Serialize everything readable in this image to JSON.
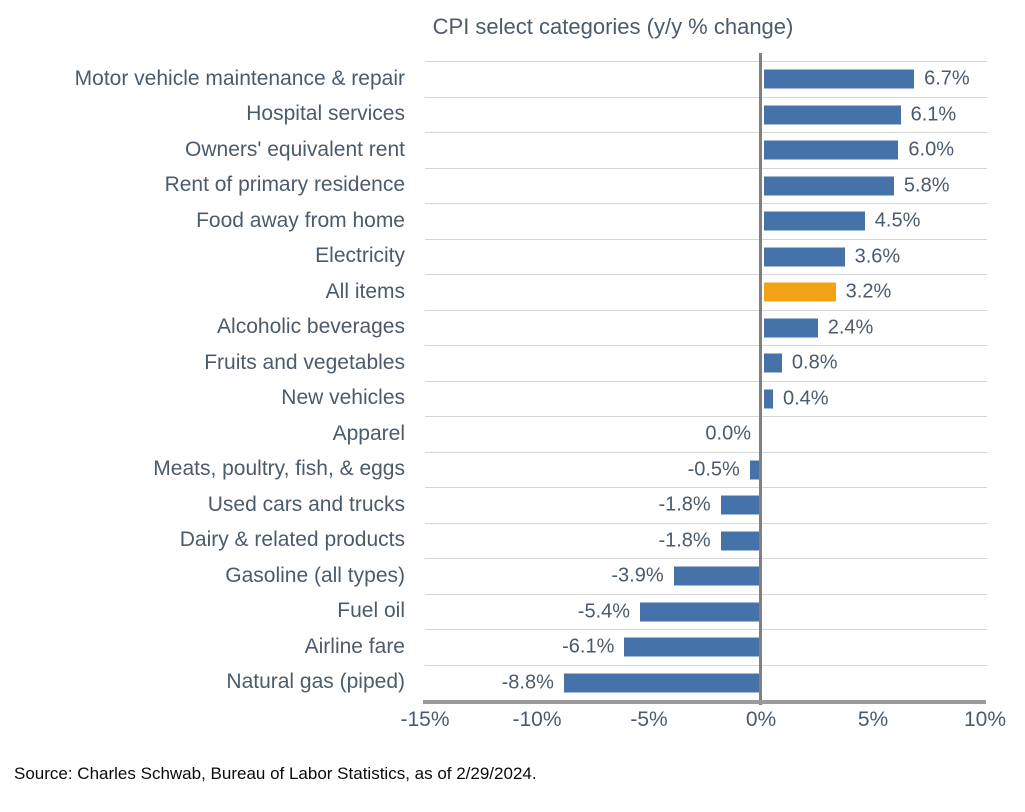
{
  "title": "CPI select categories (y/y % change)",
  "source": "Source: Charles Schwab, Bureau of Labor Statistics, as of 2/29/2024.",
  "colors": {
    "bar_blue": "#4573A9",
    "bar_orange": "#F3A218",
    "text": "#4C5B6B",
    "gridline": "#D6D6D6",
    "zero_line": "#808080",
    "axis_line": "#9B9B9B"
  },
  "chart_data": {
    "type": "bar",
    "orientation": "horizontal",
    "title": "CPI select categories (y/y % change)",
    "xlabel": "",
    "ylabel": "",
    "xlim": [
      -15,
      10
    ],
    "grid": "horizontal-row-separators",
    "legend": "none",
    "categories": [
      "Motor vehicle maintenance & repair",
      "Hospital services",
      "Owners' equivalent rent",
      "Rent of primary residence",
      "Food away from home",
      "Electricity",
      "All items",
      "Alcoholic beverages",
      "Fruits and vegetables",
      "New vehicles",
      "Apparel",
      "Meats, poultry, fish, & eggs",
      "Used cars and trucks",
      "Dairy & related products",
      "Gasoline (all types)",
      "Fuel oil",
      "Airline fare",
      "Natural gas (piped)"
    ],
    "values": [
      6.7,
      6.1,
      6.0,
      5.8,
      4.5,
      3.6,
      3.2,
      2.4,
      0.8,
      0.4,
      0.0,
      -0.5,
      -1.8,
      -1.8,
      -3.9,
      -5.4,
      -6.1,
      -8.8
    ],
    "value_labels": [
      "6.7%",
      "6.1%",
      "6.0%",
      "5.8%",
      "4.5%",
      "3.6%",
      "3.2%",
      "2.4%",
      "0.8%",
      "0.4%",
      "0.0%",
      "-0.5%",
      "-1.8%",
      "-1.8%",
      "-3.9%",
      "-5.4%",
      "-6.1%",
      "-8.8%"
    ],
    "highlight_category": "All items",
    "x_ticks": [
      "-15%",
      "-10%",
      "-5%",
      "0%",
      "5%",
      "10%"
    ],
    "x_tick_values": [
      -15,
      -10,
      -5,
      0,
      5,
      10
    ]
  }
}
